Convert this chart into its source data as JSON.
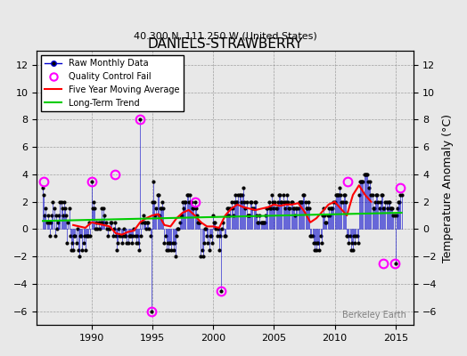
{
  "title": "DANIELS-STRAWBERRY",
  "subtitle": "40.300 N, 111.250 W (United States)",
  "ylabel_right": "Temperature Anomaly (°C)",
  "xlabel": "",
  "watermark": "Berkeley Earth",
  "xlim": [
    1985.5,
    2016.5
  ],
  "ylim": [
    -7,
    13
  ],
  "yticks": [
    -6,
    -4,
    -2,
    0,
    2,
    4,
    6,
    8,
    10,
    12
  ],
  "xticks": [
    1990,
    1995,
    2000,
    2005,
    2010,
    2015
  ],
  "raw_color": "#0000cc",
  "ma_color": "#ff0000",
  "trend_color": "#00cc00",
  "qc_color": "#ff00ff",
  "background_color": "#e8e8e8",
  "figsize": [
    5.24,
    4.0
  ],
  "dpi": 100,
  "raw_data": {
    "years": [
      1986.0,
      1986.083,
      1986.167,
      1986.25,
      1986.333,
      1986.417,
      1986.5,
      1986.583,
      1986.667,
      1986.75,
      1986.833,
      1986.917,
      1987.0,
      1987.083,
      1987.167,
      1987.25,
      1987.333,
      1987.417,
      1987.5,
      1987.583,
      1987.667,
      1987.75,
      1987.833,
      1987.917,
      1988.0,
      1988.083,
      1988.167,
      1988.25,
      1988.333,
      1988.417,
      1988.5,
      1988.583,
      1988.667,
      1988.75,
      1988.833,
      1988.917,
      1989.0,
      1989.083,
      1989.167,
      1989.25,
      1989.333,
      1989.417,
      1989.5,
      1989.583,
      1989.667,
      1989.75,
      1989.833,
      1989.917,
      1990.0,
      1990.083,
      1990.167,
      1990.25,
      1990.333,
      1990.417,
      1990.5,
      1990.583,
      1990.667,
      1990.75,
      1990.833,
      1990.917,
      1991.0,
      1991.083,
      1991.167,
      1991.25,
      1991.333,
      1991.417,
      1991.5,
      1991.583,
      1991.667,
      1991.75,
      1991.833,
      1991.917,
      1992.0,
      1992.083,
      1992.167,
      1992.25,
      1992.333,
      1992.417,
      1992.5,
      1992.583,
      1992.667,
      1992.75,
      1992.833,
      1992.917,
      1993.0,
      1993.083,
      1993.167,
      1993.25,
      1993.333,
      1993.417,
      1993.5,
      1993.583,
      1993.667,
      1993.75,
      1993.833,
      1993.917,
      1994.0,
      1994.083,
      1994.167,
      1994.25,
      1994.333,
      1994.417,
      1994.5,
      1994.583,
      1994.667,
      1994.75,
      1994.833,
      1994.917,
      1995.0,
      1995.083,
      1995.167,
      1995.25,
      1995.333,
      1995.417,
      1995.5,
      1995.583,
      1995.667,
      1995.75,
      1995.833,
      1995.917,
      1996.0,
      1996.083,
      1996.167,
      1996.25,
      1996.333,
      1996.417,
      1996.5,
      1996.583,
      1996.667,
      1996.75,
      1996.833,
      1996.917,
      1997.0,
      1997.083,
      1997.167,
      1997.25,
      1997.333,
      1997.417,
      1997.5,
      1997.583,
      1997.667,
      1997.75,
      1997.833,
      1997.917,
      1998.0,
      1998.083,
      1998.167,
      1998.25,
      1998.333,
      1998.417,
      1998.5,
      1998.583,
      1998.667,
      1998.75,
      1998.833,
      1998.917,
      1999.0,
      1999.083,
      1999.167,
      1999.25,
      1999.333,
      1999.417,
      1999.5,
      1999.583,
      1999.667,
      1999.75,
      1999.833,
      1999.917,
      2000.0,
      2000.083,
      2000.167,
      2000.25,
      2000.333,
      2000.417,
      2000.5,
      2000.583,
      2000.667,
      2000.75,
      2000.833,
      2000.917,
      2001.0,
      2001.083,
      2001.167,
      2001.25,
      2001.333,
      2001.417,
      2001.5,
      2001.583,
      2001.667,
      2001.75,
      2001.833,
      2001.917,
      2002.0,
      2002.083,
      2002.167,
      2002.25,
      2002.333,
      2002.417,
      2002.5,
      2002.583,
      2002.667,
      2002.75,
      2002.833,
      2002.917,
      2003.0,
      2003.083,
      2003.167,
      2003.25,
      2003.333,
      2003.417,
      2003.5,
      2003.583,
      2003.667,
      2003.75,
      2003.833,
      2003.917,
      2004.0,
      2004.083,
      2004.167,
      2004.25,
      2004.333,
      2004.417,
      2004.5,
      2004.583,
      2004.667,
      2004.75,
      2004.833,
      2004.917,
      2005.0,
      2005.083,
      2005.167,
      2005.25,
      2005.333,
      2005.417,
      2005.5,
      2005.583,
      2005.667,
      2005.75,
      2005.833,
      2005.917,
      2006.0,
      2006.083,
      2006.167,
      2006.25,
      2006.333,
      2006.417,
      2006.5,
      2006.583,
      2006.667,
      2006.75,
      2006.833,
      2006.917,
      2007.0,
      2007.083,
      2007.167,
      2007.25,
      2007.333,
      2007.417,
      2007.5,
      2007.583,
      2007.667,
      2007.75,
      2007.833,
      2007.917,
      2008.0,
      2008.083,
      2008.167,
      2008.25,
      2008.333,
      2008.417,
      2008.5,
      2008.583,
      2008.667,
      2008.75,
      2008.833,
      2008.917,
      2009.0,
      2009.083,
      2009.167,
      2009.25,
      2009.333,
      2009.417,
      2009.5,
      2009.583,
      2009.667,
      2009.75,
      2009.833,
      2009.917,
      2010.0,
      2010.083,
      2010.167,
      2010.25,
      2010.333,
      2010.417,
      2010.5,
      2010.583,
      2010.667,
      2010.75,
      2010.833,
      2010.917,
      2011.0,
      2011.083,
      2011.167,
      2011.25,
      2011.333,
      2011.417,
      2011.5,
      2011.583,
      2011.667,
      2011.75,
      2011.833,
      2011.917,
      2012.0,
      2012.083,
      2012.167,
      2012.25,
      2012.333,
      2012.417,
      2012.5,
      2012.583,
      2012.667,
      2012.75,
      2012.833,
      2012.917,
      2013.0,
      2013.083,
      2013.167,
      2013.25,
      2013.333,
      2013.417,
      2013.5,
      2013.583,
      2013.667,
      2013.75,
      2013.833,
      2013.917,
      2014.0,
      2014.083,
      2014.167,
      2014.25,
      2014.333,
      2014.417,
      2014.5,
      2014.583,
      2014.667,
      2014.75,
      2014.833,
      2014.917,
      2015.0,
      2015.083,
      2015.167,
      2015.25,
      2015.333,
      2015.417,
      2015.5
    ],
    "values": [
      3.0,
      2.5,
      1.0,
      1.5,
      0.5,
      1.0,
      0.5,
      -0.5,
      0.5,
      1.0,
      2.0,
      1.5,
      -0.5,
      1.0,
      0.0,
      0.5,
      1.0,
      2.0,
      2.0,
      1.5,
      1.0,
      2.0,
      1.5,
      1.0,
      -1.0,
      0.5,
      1.5,
      -0.5,
      -1.5,
      -1.0,
      -1.5,
      -0.5,
      -0.5,
      -1.0,
      0.0,
      -1.5,
      -2.0,
      -0.5,
      -0.5,
      -1.5,
      -1.0,
      -0.5,
      -1.5,
      -0.5,
      -0.5,
      -0.5,
      0.5,
      -0.5,
      3.5,
      1.5,
      2.0,
      1.5,
      0.0,
      0.5,
      0.0,
      0.5,
      0.0,
      0.5,
      1.5,
      0.5,
      1.5,
      1.0,
      0.5,
      0.0,
      -0.5,
      0.0,
      0.0,
      0.5,
      0.5,
      -0.5,
      0.0,
      0.5,
      -0.5,
      -1.5,
      -1.0,
      0.0,
      -0.5,
      -0.5,
      -1.0,
      -0.5,
      0.0,
      -0.5,
      -0.5,
      -1.0,
      -1.0,
      -0.5,
      -0.5,
      -0.5,
      -1.0,
      -0.5,
      0.0,
      -0.5,
      -1.0,
      -0.5,
      -1.0,
      -1.5,
      8.0,
      -0.5,
      0.5,
      1.0,
      0.5,
      0.5,
      0.0,
      0.5,
      0.5,
      0.0,
      -0.5,
      -6.0,
      2.0,
      3.5,
      2.0,
      1.0,
      1.5,
      2.5,
      2.5,
      1.0,
      1.5,
      1.5,
      2.0,
      1.5,
      -1.0,
      -0.5,
      -1.5,
      -1.0,
      -1.5,
      -1.0,
      -1.0,
      -1.5,
      -1.0,
      -1.5,
      -1.0,
      -2.0,
      -0.5,
      0.0,
      0.0,
      0.5,
      1.0,
      1.0,
      2.0,
      1.5,
      2.0,
      2.0,
      2.5,
      2.5,
      2.0,
      2.5,
      2.0,
      2.0,
      1.5,
      1.5,
      2.0,
      1.5,
      1.0,
      0.5,
      0.5,
      0.5,
      -2.0,
      -1.5,
      -2.0,
      -1.0,
      0.0,
      0.0,
      -0.5,
      -1.0,
      -1.5,
      -0.5,
      -0.5,
      -1.0,
      1.0,
      0.5,
      0.5,
      0.0,
      -0.5,
      0.0,
      -1.5,
      -0.5,
      -4.5,
      0.0,
      0.5,
      -0.5,
      -0.5,
      1.0,
      1.5,
      1.5,
      1.0,
      1.5,
      2.0,
      1.5,
      1.0,
      2.0,
      2.5,
      2.0,
      2.0,
      2.5,
      2.5,
      2.5,
      2.0,
      2.5,
      3.0,
      2.0,
      1.5,
      2.0,
      1.0,
      1.0,
      1.0,
      2.0,
      2.0,
      1.5,
      1.5,
      2.0,
      2.0,
      1.0,
      0.5,
      0.5,
      1.0,
      0.5,
      0.5,
      0.5,
      0.5,
      0.5,
      1.0,
      1.5,
      1.5,
      2.0,
      1.5,
      1.5,
      2.5,
      2.0,
      1.5,
      2.0,
      1.5,
      1.5,
      2.0,
      2.5,
      2.5,
      2.0,
      2.0,
      2.5,
      2.0,
      1.5,
      2.0,
      2.5,
      2.0,
      1.5,
      1.5,
      2.0,
      2.0,
      1.5,
      1.5,
      1.0,
      1.5,
      1.5,
      1.5,
      2.0,
      2.0,
      2.0,
      2.0,
      2.5,
      2.5,
      2.0,
      1.5,
      1.5,
      2.0,
      1.5,
      -0.5,
      -0.5,
      -0.5,
      -1.0,
      -1.5,
      -1.0,
      -1.5,
      -1.0,
      -1.0,
      -1.5,
      -0.5,
      -1.0,
      1.0,
      1.5,
      1.0,
      0.5,
      0.5,
      1.0,
      1.5,
      1.0,
      1.5,
      1.5,
      1.5,
      2.0,
      2.0,
      2.5,
      2.5,
      2.5,
      2.5,
      3.0,
      2.5,
      2.0,
      2.0,
      2.5,
      2.5,
      2.0,
      -0.5,
      -0.5,
      -1.0,
      -0.5,
      -1.5,
      -1.0,
      -1.5,
      -0.5,
      -1.0,
      -0.5,
      -0.5,
      -1.0,
      2.5,
      3.5,
      3.5,
      3.5,
      3.5,
      4.0,
      4.0,
      4.0,
      4.0,
      3.5,
      3.0,
      3.5,
      2.5,
      2.5,
      1.5,
      1.5,
      2.0,
      2.5,
      2.5,
      2.0,
      1.5,
      2.0,
      2.5,
      2.5,
      1.5,
      1.5,
      2.0,
      2.0,
      1.5,
      2.0,
      2.0,
      1.5,
      1.5,
      1.5,
      1.0,
      1.0,
      -2.5,
      1.0,
      1.5,
      2.0,
      2.0,
      2.5,
      2.5,
      2.0,
      1.5,
      2.0,
      1.5,
      -2.5,
      2.0,
      2.5,
      2.5,
      2.5,
      2.5,
      3.0,
      3.5
    ]
  },
  "qc_fails": [
    {
      "year": 1986.083,
      "value": 3.5
    },
    {
      "year": 1990.0,
      "value": 3.5
    },
    {
      "year": 1991.917,
      "value": 4.0
    },
    {
      "year": 1994.0,
      "value": 8.0
    },
    {
      "year": 1994.917,
      "value": -6.0
    },
    {
      "year": 1998.5,
      "value": 2.0
    },
    {
      "year": 2000.667,
      "value": -4.5
    },
    {
      "year": 2011.083,
      "value": 3.5
    },
    {
      "year": 2014.0,
      "value": -2.5
    },
    {
      "year": 2014.917,
      "value": -2.5
    },
    {
      "year": 2015.417,
      "value": 3.0
    }
  ],
  "moving_avg": {
    "years": [
      1988.5,
      1989.0,
      1989.5,
      1990.0,
      1990.5,
      1991.0,
      1991.5,
      1992.0,
      1992.5,
      1993.0,
      1993.5,
      1994.0,
      1994.5,
      1995.0,
      1995.5,
      1996.0,
      1996.5,
      1997.0,
      1997.5,
      1998.0,
      1998.5,
      1999.0,
      1999.5,
      2000.0,
      2000.5,
      2001.0,
      2001.5,
      2002.0,
      2002.5,
      2003.0,
      2003.5,
      2004.0,
      2004.5,
      2005.0,
      2005.5,
      2006.0,
      2006.5,
      2007.0,
      2007.5,
      2008.0,
      2008.5,
      2009.0,
      2009.5,
      2010.0,
      2010.5,
      2011.0,
      2011.5,
      2012.0,
      2012.5,
      2013.0
    ],
    "values": [
      0.3,
      0.2,
      0.1,
      0.5,
      0.4,
      0.3,
      0.2,
      -0.3,
      -0.4,
      -0.2,
      -0.1,
      0.5,
      0.8,
      1.0,
      1.1,
      0.3,
      0.2,
      0.8,
      1.2,
      1.4,
      1.0,
      0.5,
      0.2,
      0.2,
      0.1,
      1.0,
      1.5,
      1.8,
      1.6,
      1.5,
      1.4,
      1.5,
      1.6,
      1.8,
      1.7,
      1.8,
      1.8,
      1.9,
      1.3,
      0.5,
      0.8,
      1.3,
      1.8,
      2.0,
      1.5,
      1.0,
      2.5,
      3.2,
      2.5,
      2.0
    ]
  },
  "trend": {
    "years": [
      1986.0,
      2015.5
    ],
    "values": [
      0.6,
      1.2
    ]
  },
  "legend_items": [
    {
      "label": "Raw Monthly Data",
      "color": "#0000cc",
      "type": "line_dot"
    },
    {
      "label": "Quality Control Fail",
      "color": "#ff00ff",
      "type": "circle"
    },
    {
      "label": "Five Year Moving Average",
      "color": "#ff0000",
      "type": "line"
    },
    {
      "label": "Long-Term Trend",
      "color": "#00cc00",
      "type": "line"
    }
  ]
}
